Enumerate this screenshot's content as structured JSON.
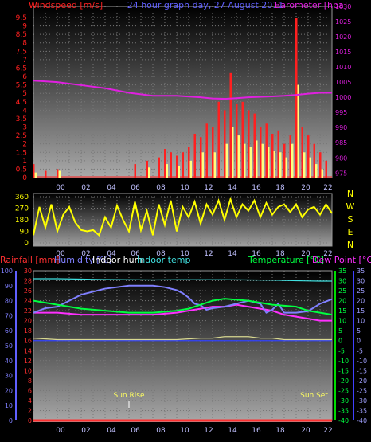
{
  "colors": {
    "wind": "#ff2020",
    "gust": "#ffff80",
    "baro": "#e020e0",
    "dir": "#ffff00",
    "rain": "#ff3030",
    "humidity": "#8080ff",
    "indoor_hum": "#ffffff",
    "indoor_temp": "#40e0e0",
    "temperature": "#00ff40",
    "dewpoint": "#ff30ff",
    "sun": "#ffff60",
    "hours": "#c0c0ff",
    "direction_labels": "#ffff00"
  },
  "chart_data": [
    {
      "type": "bar",
      "title": "24 hour graph day, 27 August 2011",
      "ylabel_left": "Windspeed [m/s]",
      "ylabel_right": "Barometer [hpa]",
      "grid": true,
      "xticks": [
        "00",
        "02",
        "04",
        "06",
        "08",
        "10",
        "12",
        "14",
        "16",
        "18",
        "20",
        "22"
      ],
      "yticks_left": [
        "0",
        "0.5",
        "1",
        "1.5",
        "2",
        "2.5",
        "3",
        "3.5",
        "4",
        "4.5",
        "5",
        "5.5",
        "6",
        "6.5",
        "7",
        "7.5",
        "8",
        "8.5",
        "9",
        "9.5"
      ],
      "yticks_right": [
        "975",
        "980",
        "985",
        "990",
        "995",
        "1000",
        "1005",
        "1010",
        "1015",
        "1020",
        "1025",
        "1030"
      ],
      "ylim_left": [
        0,
        9.5
      ],
      "ylim_right": [
        973.5,
        1030
      ],
      "series": [
        {
          "name": "Windspeed [m/s]",
          "type": "bar",
          "x": [
            -2,
            -1,
            0,
            6.5,
            7.5,
            8.5,
            9,
            9.5,
            10,
            10.5,
            11,
            11.5,
            12,
            12.5,
            13,
            13.5,
            14,
            14.5,
            15,
            15.5,
            16,
            16.5,
            17,
            17.5,
            18,
            18.5,
            19,
            19.5,
            20,
            20.5,
            21,
            21.5,
            22,
            22.5
          ],
          "values": [
            0.8,
            0.4,
            0.5,
            0.8,
            1,
            1.2,
            1.7,
            1.5,
            1.3,
            1.5,
            1.8,
            2.6,
            2.4,
            3.2,
            3,
            4.5,
            4,
            6.2,
            4.4,
            4.5,
            4,
            3.8,
            3,
            3.2,
            2.6,
            2.8,
            2,
            2.5,
            9.5,
            3,
            2.5,
            2,
            1.5,
            1
          ]
        },
        {
          "name": "Wind gust",
          "type": "bar",
          "x": [
            -2,
            0,
            7.5,
            9,
            10,
            11,
            12,
            13,
            14,
            14.5,
            15,
            15.5,
            16,
            16.5,
            17,
            17.5,
            18,
            18.5,
            19,
            19.5,
            20,
            20.5,
            21,
            21.5,
            22
          ],
          "values": [
            0.3,
            0.4,
            0.6,
            0.8,
            0.7,
            1,
            1.5,
            1.5,
            2,
            3,
            2.5,
            2,
            1.8,
            2.2,
            2,
            1.8,
            1.6,
            1.5,
            1.2,
            2,
            5.5,
            1.5,
            1.2,
            0.8,
            0.5
          ]
        },
        {
          "name": "Barometer [hpa]",
          "type": "line",
          "x": [
            -2,
            0,
            2,
            4,
            6,
            8,
            10,
            12,
            13,
            14,
            15,
            16,
            18,
            19,
            20,
            21,
            22,
            23
          ],
          "values": [
            1005.5,
            1005,
            1004,
            1003,
            1001.5,
            1000.5,
            1000.5,
            1000,
            999.6,
            999.5,
            999.7,
            1000,
            1000.3,
            1000.5,
            1000.8,
            1001.2,
            1001.5,
            1001.5
          ]
        }
      ]
    },
    {
      "type": "line",
      "xticks": [
        "00",
        "02",
        "04",
        "06",
        "08",
        "10",
        "12",
        "14",
        "16",
        "18",
        "20",
        "22"
      ],
      "yticks": [
        "0",
        "90",
        "180",
        "270",
        "360"
      ],
      "ylim": [
        0,
        360
      ],
      "direction_labels": [
        "N",
        "W",
        "S",
        "E",
        "N"
      ],
      "series": [
        {
          "name": "Wind direction",
          "x": [
            -2,
            -1.5,
            -1,
            -0.5,
            0,
            0.5,
            1,
            1.5,
            2,
            2.5,
            3,
            3.5,
            4,
            4.5,
            5,
            5.5,
            6,
            6.5,
            7,
            7.5,
            8,
            8.5,
            9,
            9.5,
            10,
            10.5,
            11,
            11.5,
            12,
            12.5,
            13,
            13.5,
            14,
            14.5,
            15,
            15.5,
            16,
            16.5,
            17,
            17.5,
            18,
            18.5,
            19,
            19.5,
            20,
            20.5,
            21,
            21.5,
            22,
            22.5,
            23
          ],
          "values": [
            60,
            280,
            120,
            300,
            90,
            220,
            280,
            160,
            100,
            90,
            100,
            60,
            200,
            120,
            290,
            180,
            90,
            320,
            100,
            250,
            60,
            300,
            140,
            330,
            90,
            280,
            200,
            320,
            150,
            300,
            220,
            330,
            180,
            340,
            200,
            300,
            250,
            330,
            200,
            310,
            220,
            280,
            300,
            240,
            300,
            200,
            260,
            280,
            220,
            300,
            230
          ]
        }
      ]
    },
    {
      "type": "line",
      "labels_top": [
        "Rainfall [mm]",
        "Humidity [%]",
        "Indoor hum",
        "Indoor temp",
        "Temperature [°C]",
        "Dew Point [°C]"
      ],
      "xticks": [
        "00",
        "02",
        "04",
        "06",
        "08",
        "10",
        "12",
        "14",
        "16",
        "18",
        "20",
        "22"
      ],
      "yticks_rain": [
        "0",
        "2",
        "4",
        "6",
        "8",
        "10",
        "12",
        "14",
        "16",
        "18",
        "20",
        "22",
        "24",
        "26",
        "28",
        "30"
      ],
      "yticks_hum": [
        "0",
        "10",
        "20",
        "30",
        "40",
        "50",
        "60",
        "70",
        "80",
        "90",
        "100"
      ],
      "yticks_temp": [
        "-40",
        "-35",
        "-30",
        "-25",
        "-20",
        "-15",
        "-10",
        "-5",
        "0",
        "5",
        "10",
        "15",
        "20",
        "25",
        "30",
        "35"
      ],
      "ylim_hum": [
        0,
        100
      ],
      "ylim_temp": [
        -40,
        35
      ],
      "annotations": [
        {
          "text": "Sun Rise",
          "x": 6
        },
        {
          "text": "Sun Set",
          "x": 21.5
        }
      ],
      "series": [
        {
          "name": "Rainfall [mm]",
          "x": [
            -2,
            23
          ],
          "values": [
            0,
            0
          ]
        },
        {
          "name": "Humidity [%]",
          "x": [
            -2,
            -1,
            0,
            1,
            2,
            3,
            4,
            5,
            6,
            7,
            8,
            9,
            10,
            10.5,
            11,
            11.5,
            12,
            12.5,
            13,
            14,
            15,
            16,
            17,
            17.5,
            18,
            18.5,
            19,
            20,
            21,
            22,
            23
          ],
          "values": [
            72,
            75,
            76,
            80,
            84,
            86,
            88,
            89,
            90,
            90,
            90,
            89,
            87,
            85,
            82,
            78,
            77,
            74,
            75,
            76,
            78,
            80,
            78,
            72,
            74,
            78,
            72,
            72,
            73,
            78,
            81
          ]
        },
        {
          "name": "Indoor hum",
          "x": [
            -2,
            0,
            2,
            4,
            6,
            8,
            10,
            12,
            13,
            14,
            15,
            16,
            17,
            18,
            19,
            20,
            21,
            22,
            23
          ],
          "values": [
            55,
            54,
            54,
            54,
            54,
            54,
            54,
            55,
            55,
            56,
            56,
            56,
            55,
            55,
            54,
            54,
            54,
            54,
            54
          ]
        },
        {
          "name": "Indoor temp",
          "x": [
            -2,
            0,
            2,
            4,
            6,
            8,
            10,
            12,
            14,
            16,
            18,
            20,
            22,
            23
          ],
          "values": [
            31,
            31,
            30.8,
            30.6,
            30.5,
            30.4,
            30.5,
            30.5,
            30.5,
            30.4,
            30.3,
            30,
            29.8,
            29.8
          ]
        },
        {
          "name": "Temperature [°C]",
          "x": [
            -2,
            0,
            2,
            4,
            6,
            8,
            10,
            11,
            12,
            13,
            14,
            15,
            16,
            17,
            18,
            19,
            20,
            21,
            22,
            23
          ],
          "values": [
            20,
            18,
            16,
            15,
            14,
            14,
            15,
            16,
            18,
            20,
            21,
            20.5,
            20,
            19,
            18,
            17.5,
            17,
            15,
            14,
            13
          ]
        },
        {
          "name": "Dew Point [°C]",
          "x": [
            -2,
            0,
            2,
            4,
            6,
            8,
            10,
            12,
            13,
            14,
            15,
            16,
            17,
            18,
            19,
            20,
            21,
            22,
            23
          ],
          "values": [
            14,
            14,
            13,
            13,
            13,
            13,
            14,
            16,
            17,
            17,
            18,
            17,
            16,
            15,
            13,
            12,
            11,
            10,
            10
          ]
        }
      ]
    }
  ]
}
